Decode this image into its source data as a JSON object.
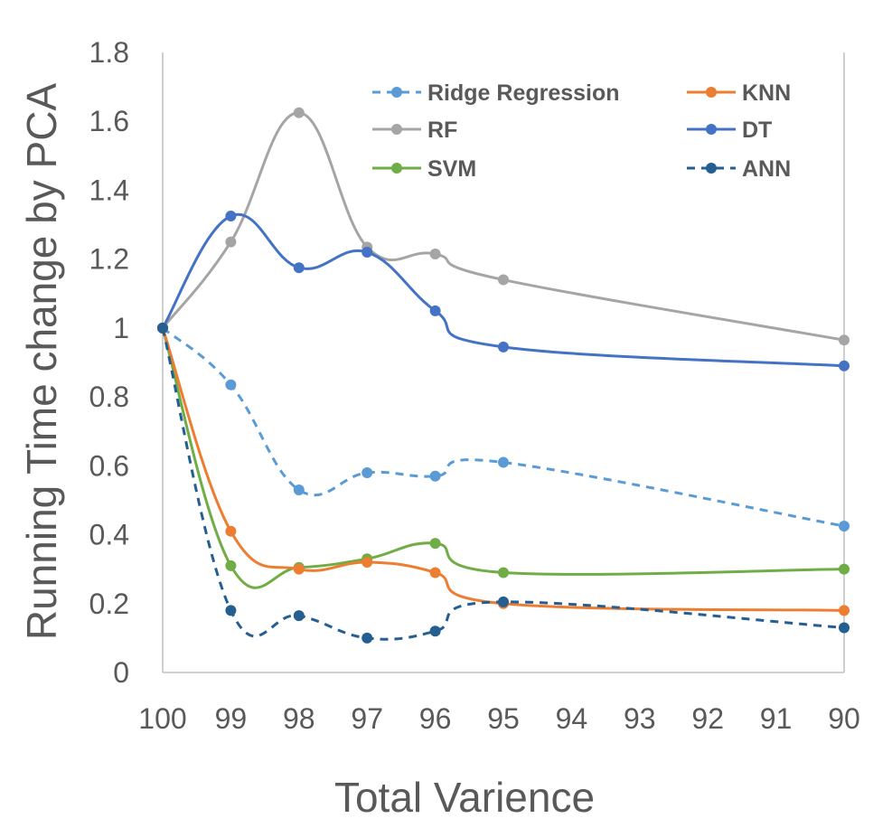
{
  "chart_data": {
    "type": "line",
    "title": "",
    "xlabel": "Total Varience",
    "ylabel": "Running Time change by PCA",
    "x_ticks": [
      "100",
      "99",
      "98",
      "97",
      "96",
      "95",
      "94",
      "93",
      "92",
      "91",
      "90"
    ],
    "xlim": [
      100,
      90
    ],
    "ylim": [
      0,
      1.8
    ],
    "y_ticks": [
      "0",
      "0.2",
      "0.4",
      "0.6",
      "0.8",
      "1",
      "1.2",
      "1.4",
      "1.6",
      "1.8"
    ],
    "grid": false,
    "legend_position": "top-right",
    "x": [
      100,
      99,
      98,
      97,
      96,
      95,
      90
    ],
    "series": [
      {
        "name": "Ridge Regression",
        "color": "#5B9BD5",
        "dashed": true,
        "values": [
          1.0,
          0.835,
          0.53,
          0.58,
          0.57,
          0.61,
          0.425
        ]
      },
      {
        "name": "KNN",
        "color": "#ED7D31",
        "dashed": false,
        "values": [
          1.0,
          0.41,
          0.3,
          0.32,
          0.29,
          0.2,
          0.18
        ]
      },
      {
        "name": "RF",
        "color": "#A5A5A5",
        "dashed": false,
        "values": [
          1.0,
          1.25,
          1.625,
          1.235,
          1.215,
          1.14,
          0.965
        ]
      },
      {
        "name": "DT",
        "color": "#4472C4",
        "dashed": false,
        "values": [
          1.0,
          1.325,
          1.175,
          1.22,
          1.05,
          0.945,
          0.89
        ]
      },
      {
        "name": "SVM",
        "color": "#70AD47",
        "dashed": false,
        "values": [
          1.0,
          0.31,
          0.305,
          0.33,
          0.375,
          0.29,
          0.3
        ]
      },
      {
        "name": "ANN",
        "color": "#255E91",
        "dashed": true,
        "values": [
          1.0,
          0.18,
          0.165,
          0.1,
          0.12,
          0.205,
          0.13
        ]
      }
    ]
  }
}
